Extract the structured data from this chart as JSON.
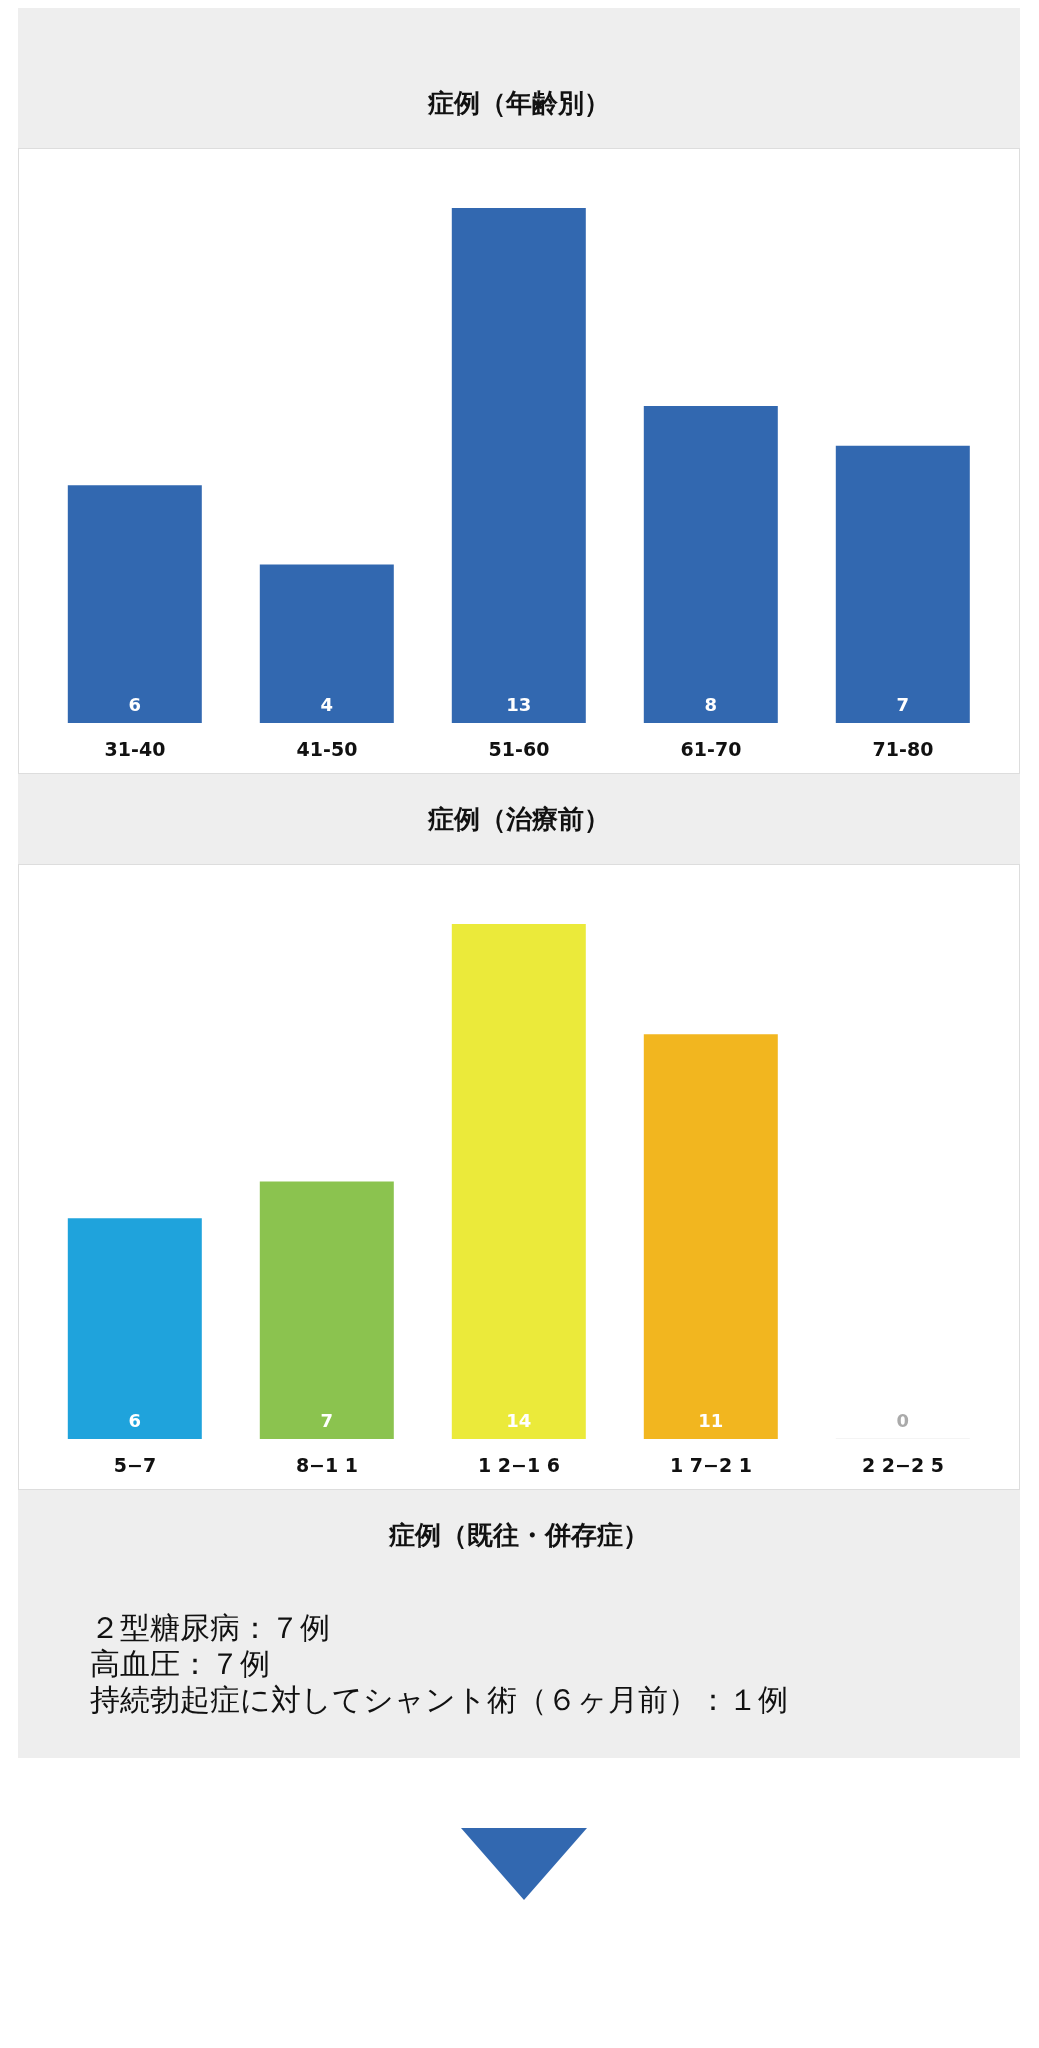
{
  "chart_data": [
    {
      "type": "bar",
      "title": "症例（年齢別）",
      "categories": [
        "31-40",
        "41-50",
        "51-60",
        "61-70",
        "71-80"
      ],
      "values": [
        6,
        4,
        13,
        8,
        7
      ],
      "color": "#3268b0",
      "data_labels": true,
      "grid": false,
      "legend": false
    },
    {
      "type": "bar",
      "title": "症例（治療前）",
      "categories": [
        "5−7",
        "8−1 1",
        "1 2−1 6",
        "1 7−2 1",
        "2 2−2 5"
      ],
      "values": [
        6,
        7,
        14,
        11,
        0
      ],
      "colors": [
        "#1fa3dc",
        "#8bc34f",
        "#ebea3a",
        "#f2b61f",
        "#f4f4f4"
      ],
      "data_labels": true,
      "grid": false,
      "legend": false
    },
    {
      "type": "other",
      "title": "症例（既往・併存症）",
      "annotations": [
        "２型糖尿病：７例",
        "高血圧：７例",
        "持続勃起症に対してシャント術（６ヶ月前）：１例"
      ]
    }
  ]
}
